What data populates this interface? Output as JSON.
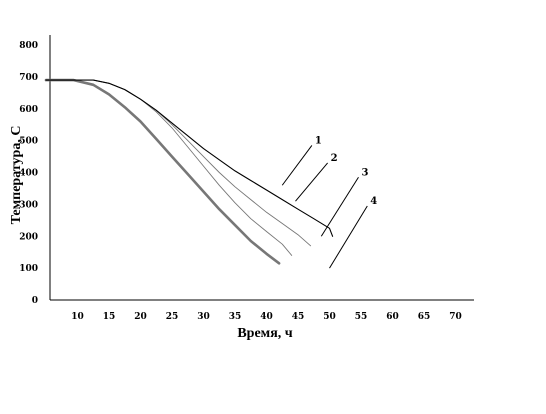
{
  "chart_data": {
    "type": "line",
    "xlabel": "Время, ч",
    "ylabel": "Температура, С",
    "xlim": [
      5,
      72
    ],
    "ylim": [
      0,
      850
    ],
    "x_ticks": [
      10,
      15,
      20,
      25,
      30,
      35,
      40,
      45,
      50,
      55,
      60,
      65,
      70
    ],
    "y_ticks": [
      0,
      100,
      200,
      300,
      400,
      500,
      600,
      700,
      800
    ],
    "grid": false,
    "series": [
      {
        "name": "1",
        "color": "#000000",
        "x": [
          5,
          9.4,
          12.5,
          15,
          17.5,
          20,
          22.5,
          25,
          27.5,
          30,
          32.5,
          35,
          37.5,
          40,
          42.5,
          45,
          47.5,
          50,
          50.5
        ],
        "y": [
          690,
          690,
          690,
          680,
          660,
          630,
          595,
          555,
          515,
          475,
          440,
          405,
          375,
          345,
          315,
          285,
          255,
          225,
          200
        ]
      },
      {
        "name": "2",
        "color": "#777777",
        "x": [
          5,
          9.4,
          12.5,
          15,
          17.5,
          20,
          22.5,
          25,
          27.5,
          30,
          32.5,
          35,
          37.5,
          40,
          42.5,
          45,
          47
        ],
        "y": [
          690,
          690,
          690,
          680,
          660,
          630,
          595,
          550,
          500,
          450,
          400,
          355,
          315,
          275,
          240,
          205,
          170
        ]
      },
      {
        "name": "3",
        "color": "#777777",
        "x": [
          5,
          9.4,
          12.5,
          15,
          17.5,
          20,
          22.5,
          25,
          27.5,
          30,
          32.5,
          35,
          37.5,
          40,
          42.5,
          44
        ],
        "y": [
          690,
          690,
          690,
          680,
          660,
          630,
          590,
          540,
          480,
          420,
          360,
          305,
          255,
          215,
          175,
          140
        ]
      },
      {
        "name": "4",
        "color": "#777777",
        "x": [
          5,
          9.4,
          12.5,
          15,
          17.5,
          20,
          22.5,
          25,
          27.5,
          30,
          32.5,
          35,
          37.5,
          40,
          42
        ],
        "y": [
          690,
          690,
          675,
          645,
          605,
          560,
          505,
          450,
          395,
          340,
          285,
          235,
          185,
          145,
          115
        ]
      }
    ],
    "callouts": [
      {
        "label": "1",
        "from": [
          42.5,
          360
        ],
        "to": [
          47.2,
          485
        ]
      },
      {
        "label": "2",
        "from": [
          44.6,
          310
        ],
        "to": [
          49.7,
          430
        ]
      },
      {
        "label": "3",
        "from": [
          48.7,
          200
        ],
        "to": [
          54.6,
          385
        ]
      },
      {
        "label": "4",
        "from": [
          50,
          100
        ],
        "to": [
          56,
          295
        ]
      }
    ]
  }
}
